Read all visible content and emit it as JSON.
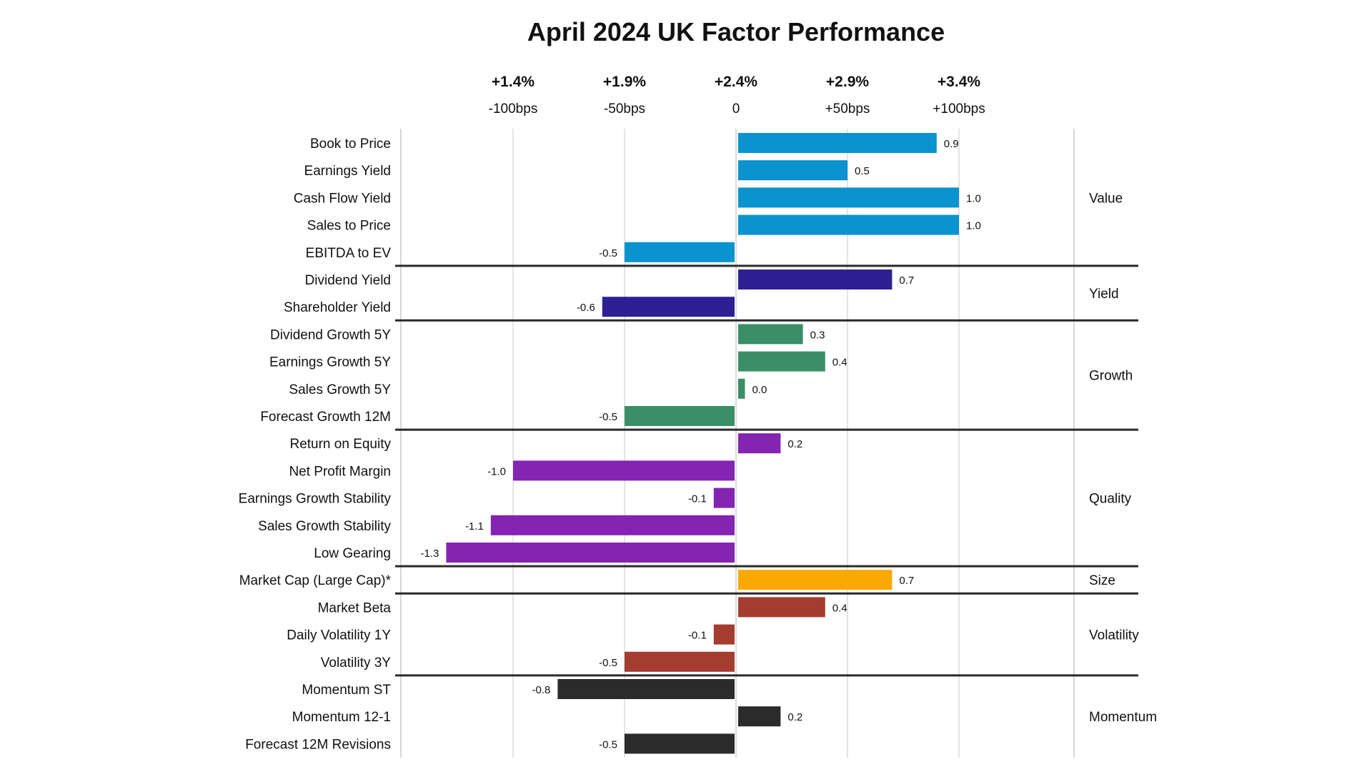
{
  "chart_data": {
    "type": "bar",
    "orientation": "horizontal",
    "title": "April 2024 UK Factor Performance",
    "xlim": [
      -1.6,
      1.6
    ],
    "grid": true,
    "axis_headers": [
      {
        "x": -1.0,
        "top": "+1.4%",
        "bottom": "-100bps"
      },
      {
        "x": -0.5,
        "top": "+1.9%",
        "bottom": "-50bps"
      },
      {
        "x": 0.0,
        "top": "+2.4%",
        "bottom": "0"
      },
      {
        "x": 0.5,
        "top": "+2.9%",
        "bottom": "+50bps"
      },
      {
        "x": 1.0,
        "top": "+3.4%",
        "bottom": "+100bps"
      }
    ],
    "groups": [
      {
        "name": "Value",
        "color": "#0a93cf",
        "items": [
          {
            "label": "Book to Price",
            "value": 0.9,
            "display": "0.9"
          },
          {
            "label": "Earnings Yield",
            "value": 0.5,
            "display": "0.5"
          },
          {
            "label": "Cash Flow Yield",
            "value": 1.0,
            "display": "1.0"
          },
          {
            "label": "Sales to Price",
            "value": 1.0,
            "display": "1.0"
          },
          {
            "label": "EBITDA to EV",
            "value": -0.5,
            "display": "-0.5"
          }
        ]
      },
      {
        "name": "Yield",
        "color": "#2e2094",
        "items": [
          {
            "label": "Dividend Yield",
            "value": 0.7,
            "display": "0.7"
          },
          {
            "label": "Shareholder Yield",
            "value": -0.6,
            "display": "-0.6"
          }
        ]
      },
      {
        "name": "Growth",
        "color": "#3a8f66",
        "items": [
          {
            "label": "Dividend Growth 5Y",
            "value": 0.3,
            "display": "0.3"
          },
          {
            "label": "Earnings Growth 5Y",
            "value": 0.4,
            "display": "0.4"
          },
          {
            "label": "Sales Growth 5Y",
            "value": 0.04,
            "display": "0.0"
          },
          {
            "label": "Forecast Growth 12M",
            "value": -0.5,
            "display": "-0.5"
          }
        ]
      },
      {
        "name": "Quality",
        "color": "#8424b3",
        "items": [
          {
            "label": "Return on Equity",
            "value": 0.2,
            "display": "0.2"
          },
          {
            "label": "Net Profit Margin",
            "value": -1.0,
            "display": "-1.0"
          },
          {
            "label": "Earnings Growth Stability",
            "value": -0.1,
            "display": "-0.1"
          },
          {
            "label": "Sales Growth Stability",
            "value": -1.1,
            "display": "-1.1"
          },
          {
            "label": "Low Gearing",
            "value": -1.3,
            "display": "-1.3"
          }
        ]
      },
      {
        "name": "Size",
        "color": "#fba800",
        "items": [
          {
            "label": "Market Cap (Large Cap)*",
            "value": 0.7,
            "display": "0.7"
          }
        ]
      },
      {
        "name": "Volatility",
        "color": "#a53c30",
        "items": [
          {
            "label": "Market Beta",
            "value": 0.4,
            "display": "0.4"
          },
          {
            "label": "Daily Volatility 1Y",
            "value": -0.1,
            "display": "-0.1"
          },
          {
            "label": "Volatility 3Y",
            "value": -0.5,
            "display": "-0.5"
          }
        ]
      },
      {
        "name": "Momentum",
        "color": "#2b2b2b",
        "items": [
          {
            "label": "Momentum ST",
            "value": -0.8,
            "display": "-0.8"
          },
          {
            "label": "Momentum 12-1",
            "value": 0.2,
            "display": "0.2"
          },
          {
            "label": "Forecast 12M Revisions",
            "value": -0.5,
            "display": "-0.5"
          }
        ]
      }
    ]
  }
}
